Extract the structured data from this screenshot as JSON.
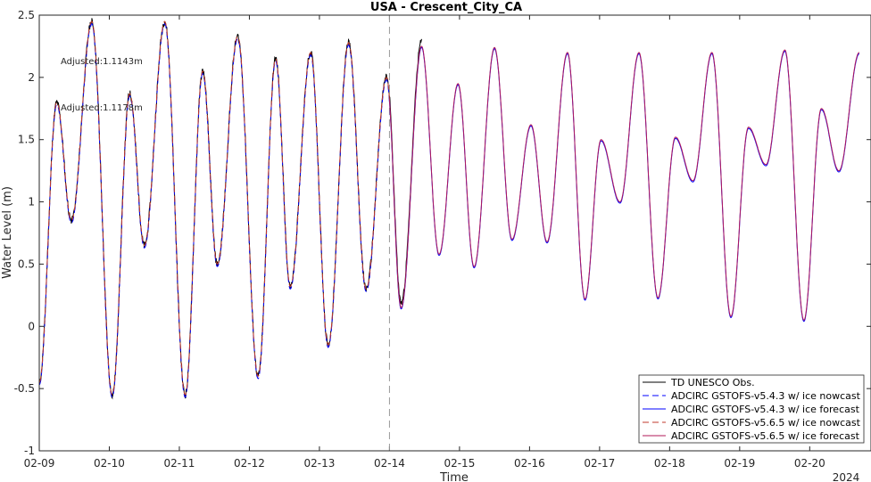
{
  "chart_data": {
    "type": "line",
    "title": "USA - Crescent_City_CA",
    "xlabel": "Time",
    "ylabel": "Water Level (m)",
    "year_label": "2024",
    "xlim": [
      "2024-02-09",
      "2024-02-20T21:00"
    ],
    "ylim": [
      -1,
      2.5
    ],
    "yticks": [
      -1,
      -0.5,
      0,
      0.5,
      1,
      1.5,
      2,
      2.5
    ],
    "xtick_labels": [
      "02-09",
      "02-10",
      "02-11",
      "02-12",
      "02-13",
      "02-14",
      "02-15",
      "02-16",
      "02-17",
      "02-18",
      "02-19",
      "02-20"
    ],
    "grid": false,
    "nowcast_forecast_divider": "2024-02-14",
    "annotations": [
      {
        "text": "Adjusted:1.1143m",
        "color": "#0000ff"
      },
      {
        "text": "Adjusted:1.1178m",
        "color": "#ff0000"
      }
    ],
    "legend": {
      "placement": "bottom-right",
      "entries": [
        {
          "label": "TD UNESCO Obs.",
          "color": "#000000",
          "dash": "solid"
        },
        {
          "label": "ADCIRC GSTOFS-v5.4.3 w/ ice nowcast",
          "color": "#0000ff",
          "dash": "dashed"
        },
        {
          "label": "ADCIRC GSTOFS-v5.4.3 w/ ice forecast",
          "color": "#0000ff",
          "dash": "solid"
        },
        {
          "label": "ADCIRC GSTOFS-v5.6.5 w/ ice nowcast",
          "color": "#c0392b",
          "dash": "dashed"
        },
        {
          "label": "ADCIRC GSTOFS-v5.6.5 w/ ice forecast",
          "color": "#b0185a",
          "dash": "solid"
        }
      ]
    },
    "extrema": [
      {
        "t": "2024-02-09T00:00",
        "v": -0.45
      },
      {
        "t": "2024-02-09T06:00",
        "v": 1.8
      },
      {
        "t": "2024-02-09T11:00",
        "v": 0.85
      },
      {
        "t": "2024-02-09T18:00",
        "v": 2.45
      },
      {
        "t": "2024-02-10T01:00",
        "v": -0.55
      },
      {
        "t": "2024-02-10T07:00",
        "v": 1.87
      },
      {
        "t": "2024-02-10T12:00",
        "v": 0.65
      },
      {
        "t": "2024-02-10T19:00",
        "v": 2.45
      },
      {
        "t": "2024-02-11T02:00",
        "v": -0.55
      },
      {
        "t": "2024-02-11T08:00",
        "v": 2.05
      },
      {
        "t": "2024-02-11T13:00",
        "v": 0.5
      },
      {
        "t": "2024-02-11T20:00",
        "v": 2.33
      },
      {
        "t": "2024-02-12T03:00",
        "v": -0.4
      },
      {
        "t": "2024-02-12T09:00",
        "v": 2.15
      },
      {
        "t": "2024-02-12T14:00",
        "v": 0.32
      },
      {
        "t": "2024-02-12T21:00",
        "v": 2.2
      },
      {
        "t": "2024-02-13T03:00",
        "v": -0.15
      },
      {
        "t": "2024-02-13T10:00",
        "v": 2.28
      },
      {
        "t": "2024-02-13T16:00",
        "v": 0.3
      },
      {
        "t": "2024-02-13T23:00",
        "v": 2.0
      },
      {
        "t": "2024-02-14T04:00",
        "v": 0.15
      },
      {
        "t": "2024-02-14T11:00",
        "v": 2.25
      },
      {
        "t": "2024-02-14T17:00",
        "v": 0.58
      },
      {
        "t": "2024-02-14T23:30",
        "v": 1.95
      },
      {
        "t": "2024-02-15T05:00",
        "v": 0.48
      },
      {
        "t": "2024-02-15T12:00",
        "v": 2.24
      },
      {
        "t": "2024-02-15T18:00",
        "v": 0.7
      },
      {
        "t": "2024-02-16T00:30",
        "v": 1.62
      },
      {
        "t": "2024-02-16T06:00",
        "v": 0.68
      },
      {
        "t": "2024-02-16T13:00",
        "v": 2.2
      },
      {
        "t": "2024-02-16T19:00",
        "v": 0.22
      },
      {
        "t": "2024-02-17T00:30",
        "v": 1.5
      },
      {
        "t": "2024-02-17T07:00",
        "v": 1.0
      },
      {
        "t": "2024-02-17T13:30",
        "v": 2.2
      },
      {
        "t": "2024-02-17T20:00",
        "v": 0.23
      },
      {
        "t": "2024-02-18T02:00",
        "v": 1.52
      },
      {
        "t": "2024-02-18T08:00",
        "v": 1.17
      },
      {
        "t": "2024-02-18T14:30",
        "v": 2.2
      },
      {
        "t": "2024-02-18T21:00",
        "v": 0.08
      },
      {
        "t": "2024-02-19T03:00",
        "v": 1.6
      },
      {
        "t": "2024-02-19T09:00",
        "v": 1.3
      },
      {
        "t": "2024-02-19T15:30",
        "v": 2.22
      },
      {
        "t": "2024-02-19T22:00",
        "v": 0.05
      },
      {
        "t": "2024-02-20T04:00",
        "v": 1.75
      },
      {
        "t": "2024-02-20T10:00",
        "v": 1.25
      },
      {
        "t": "2024-02-20T17:00",
        "v": 2.2
      }
    ]
  }
}
